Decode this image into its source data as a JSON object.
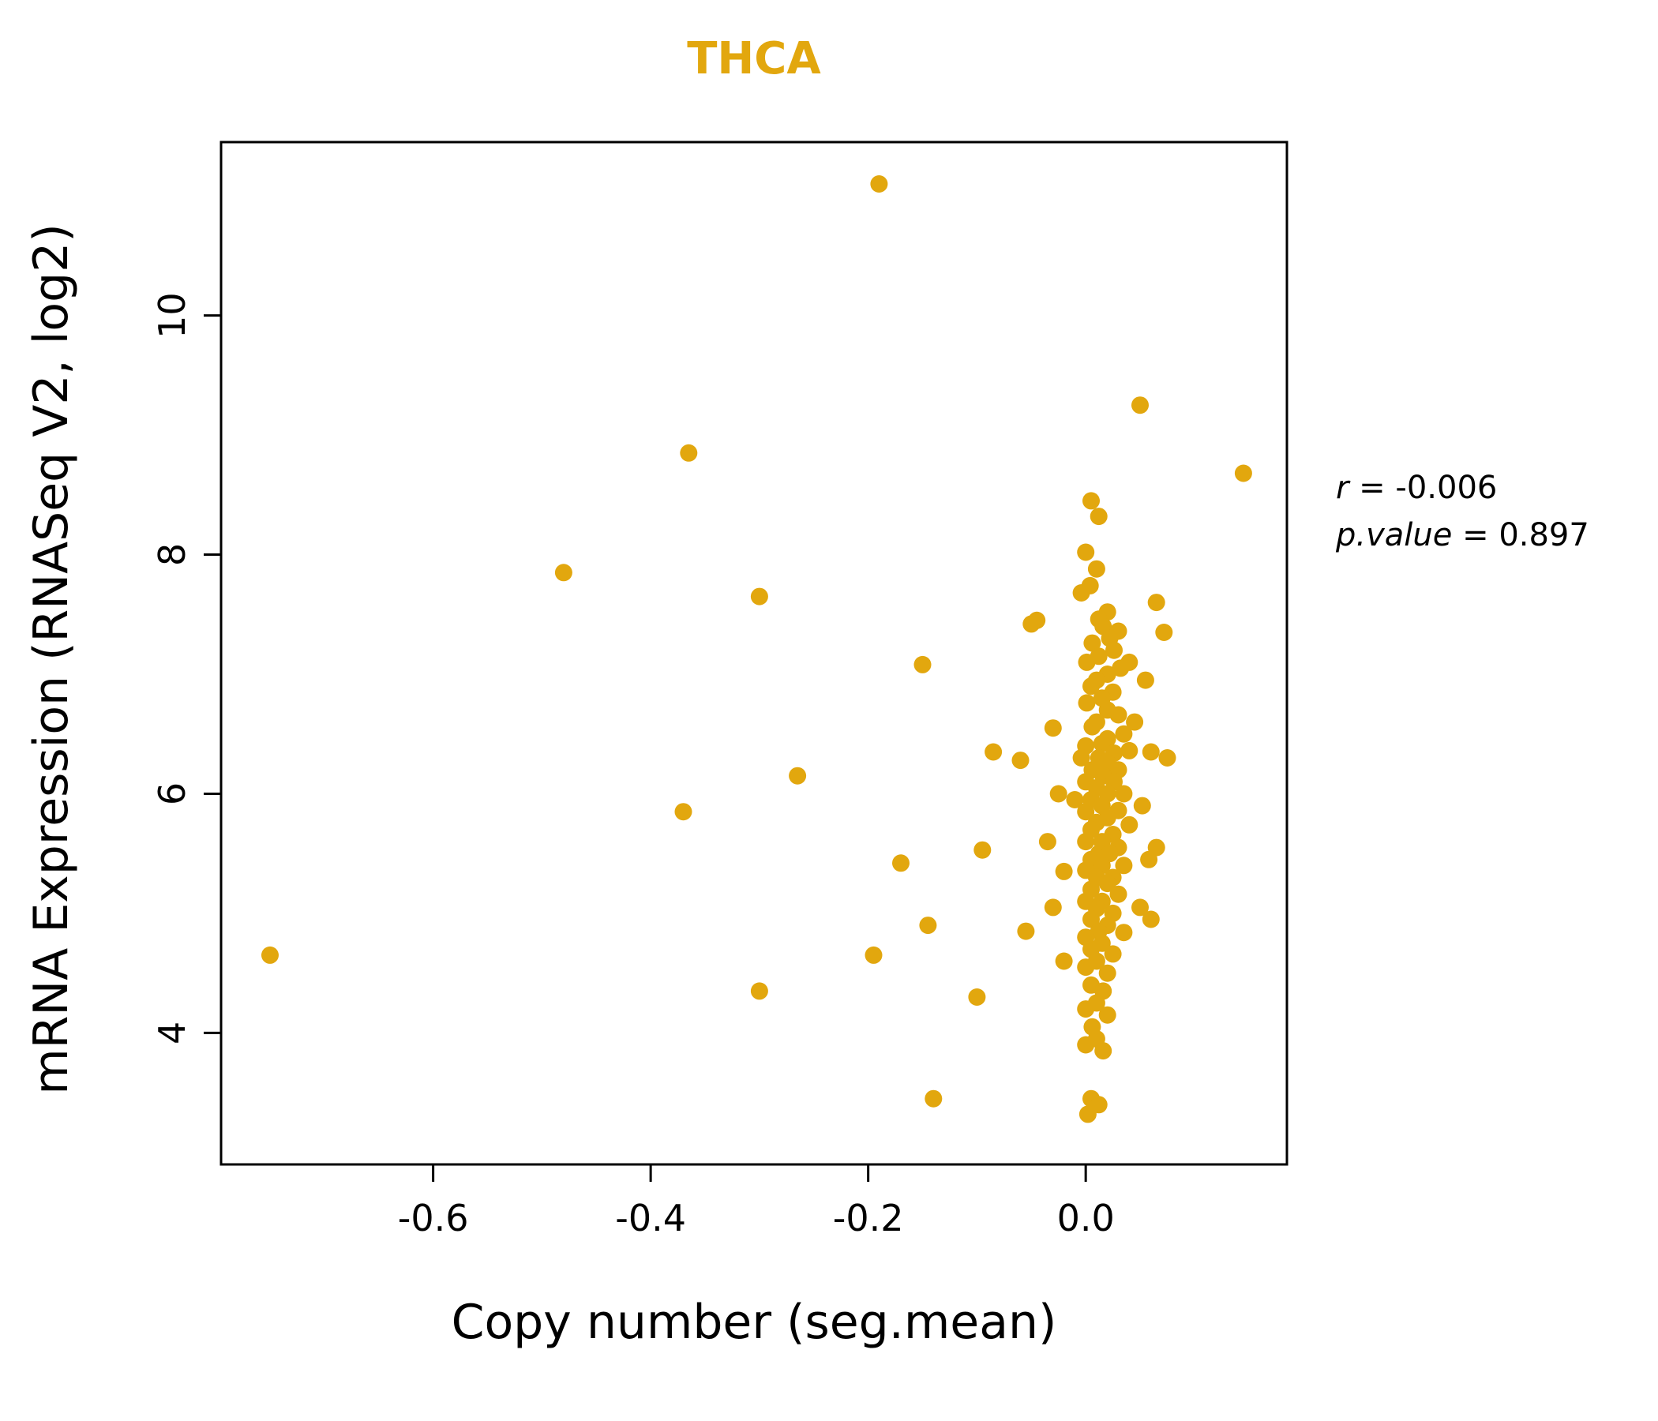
{
  "accent_color": "#E2A70E",
  "title": "THCA",
  "axis": {
    "x_label": "Copy number (seg.mean)",
    "y_label": "mRNA Expression (RNASeq V2, log2)"
  },
  "annotation": {
    "line1_var": "r",
    "line1_rest": " = -0.006",
    "line2_var": "p.value",
    "line2_rest": " = 0.897"
  },
  "chart_data": {
    "type": "scatter",
    "title": "THCA",
    "xlabel": "Copy number (seg.mean)",
    "ylabel": "mRNA Expression (RNASeq V2, log2)",
    "xlim": [
      -0.795,
      0.185
    ],
    "ylim": [
      2.9,
      11.45
    ],
    "x_ticks": [
      -0.6,
      -0.4,
      -0.2,
      0.0
    ],
    "y_ticks": [
      4,
      6,
      8,
      10
    ],
    "point_color": "#E2A70E",
    "point_radius": 11,
    "correlation_r": -0.006,
    "p_value": 0.897,
    "points": [
      [
        -0.19,
        11.1
      ],
      [
        0.05,
        9.25
      ],
      [
        0.145,
        8.68
      ],
      [
        -0.365,
        8.85
      ],
      [
        -0.48,
        7.85
      ],
      [
        -0.3,
        7.65
      ],
      [
        -0.15,
        7.08
      ],
      [
        -0.265,
        6.15
      ],
      [
        -0.37,
        5.85
      ],
      [
        -0.17,
        5.42
      ],
      [
        -0.095,
        5.53
      ],
      [
        -0.145,
        4.9
      ],
      [
        -0.195,
        4.65
      ],
      [
        -0.75,
        4.65
      ],
      [
        -0.3,
        4.35
      ],
      [
        -0.1,
        4.3
      ],
      [
        -0.14,
        3.45
      ],
      [
        -0.085,
        6.35
      ],
      [
        -0.06,
        6.28
      ],
      [
        -0.045,
        7.45
      ],
      [
        -0.05,
        7.42
      ],
      [
        -0.055,
        4.85
      ],
      [
        -0.03,
        6.55
      ],
      [
        -0.025,
        6.0
      ],
      [
        -0.035,
        5.6
      ],
      [
        -0.02,
        5.35
      ],
      [
        -0.03,
        5.05
      ],
      [
        -0.02,
        4.6
      ],
      [
        0.065,
        7.6
      ],
      [
        0.072,
        7.35
      ],
      [
        0.055,
        6.95
      ],
      [
        0.06,
        6.35
      ],
      [
        0.075,
        6.3
      ],
      [
        0.052,
        5.9
      ],
      [
        0.065,
        5.55
      ],
      [
        0.058,
        5.45
      ],
      [
        0.05,
        5.05
      ],
      [
        0.06,
        4.95
      ],
      [
        0.04,
        7.1
      ],
      [
        0.045,
        6.6
      ],
      [
        0.005,
        8.45
      ],
      [
        0.012,
        8.32
      ],
      [
        0.0,
        8.02
      ],
      [
        0.01,
        7.88
      ],
      [
        0.004,
        7.74
      ],
      [
        -0.004,
        7.68
      ],
      [
        0.02,
        7.52
      ],
      [
        0.012,
        7.46
      ],
      [
        0.016,
        7.4
      ],
      [
        0.03,
        7.36
      ],
      [
        0.022,
        7.3
      ],
      [
        0.006,
        7.26
      ],
      [
        0.026,
        7.2
      ],
      [
        0.012,
        7.15
      ],
      [
        0.001,
        7.1
      ],
      [
        0.032,
        7.05
      ],
      [
        0.02,
        7.0
      ],
      [
        0.01,
        6.95
      ],
      [
        0.005,
        6.9
      ],
      [
        0.025,
        6.85
      ],
      [
        0.015,
        6.8
      ],
      [
        0.001,
        6.76
      ],
      [
        0.02,
        6.7
      ],
      [
        0.03,
        6.66
      ],
      [
        0.01,
        6.6
      ],
      [
        0.006,
        6.56
      ],
      [
        0.035,
        6.5
      ],
      [
        0.02,
        6.46
      ],
      [
        0.015,
        6.42
      ],
      [
        0.0,
        6.4
      ],
      [
        0.04,
        6.36
      ],
      [
        0.026,
        6.34
      ],
      [
        0.012,
        6.3
      ],
      [
        -0.004,
        6.3
      ],
      [
        0.02,
        6.26
      ],
      [
        0.03,
        6.2
      ],
      [
        0.006,
        6.2
      ],
      [
        0.016,
        6.15
      ],
      [
        0.0,
        6.1
      ],
      [
        0.026,
        6.1
      ],
      [
        0.01,
        6.05
      ],
      [
        0.035,
        6.0
      ],
      [
        0.02,
        6.0
      ],
      [
        0.005,
        5.95
      ],
      [
        -0.01,
        5.95
      ],
      [
        0.015,
        5.9
      ],
      [
        0.03,
        5.86
      ],
      [
        0.0,
        5.85
      ],
      [
        0.02,
        5.8
      ],
      [
        0.01,
        5.76
      ],
      [
        0.04,
        5.74
      ],
      [
        0.005,
        5.7
      ],
      [
        0.025,
        5.66
      ],
      [
        0.015,
        5.6
      ],
      [
        0.0,
        5.6
      ],
      [
        0.03,
        5.55
      ],
      [
        0.012,
        5.5
      ],
      [
        0.022,
        5.5
      ],
      [
        0.005,
        5.45
      ],
      [
        0.035,
        5.4
      ],
      [
        0.015,
        5.4
      ],
      [
        0.0,
        5.36
      ],
      [
        0.025,
        5.3
      ],
      [
        0.01,
        5.3
      ],
      [
        0.02,
        5.25
      ],
      [
        0.005,
        5.2
      ],
      [
        0.03,
        5.16
      ],
      [
        0.015,
        5.1
      ],
      [
        0.0,
        5.1
      ],
      [
        0.01,
        5.04
      ],
      [
        0.025,
        5.0
      ],
      [
        0.005,
        4.95
      ],
      [
        0.02,
        4.9
      ],
      [
        0.012,
        4.85
      ],
      [
        0.035,
        4.84
      ],
      [
        0.0,
        4.8
      ],
      [
        0.015,
        4.75
      ],
      [
        0.005,
        4.7
      ],
      [
        0.025,
        4.66
      ],
      [
        0.01,
        4.6
      ],
      [
        0.0,
        4.55
      ],
      [
        0.02,
        4.5
      ],
      [
        0.005,
        4.4
      ],
      [
        0.016,
        4.35
      ],
      [
        0.01,
        4.25
      ],
      [
        0.0,
        4.2
      ],
      [
        0.02,
        4.15
      ],
      [
        0.006,
        4.05
      ],
      [
        0.01,
        3.95
      ],
      [
        0.0,
        3.9
      ],
      [
        0.016,
        3.85
      ],
      [
        0.005,
        3.45
      ],
      [
        0.012,
        3.4
      ],
      [
        0.002,
        3.32
      ]
    ],
    "layout": {
      "plot_left": 280,
      "plot_right": 1630,
      "plot_top": 180,
      "plot_bottom": 1475,
      "tick_len": 22,
      "tick_font_size": 46
    }
  }
}
